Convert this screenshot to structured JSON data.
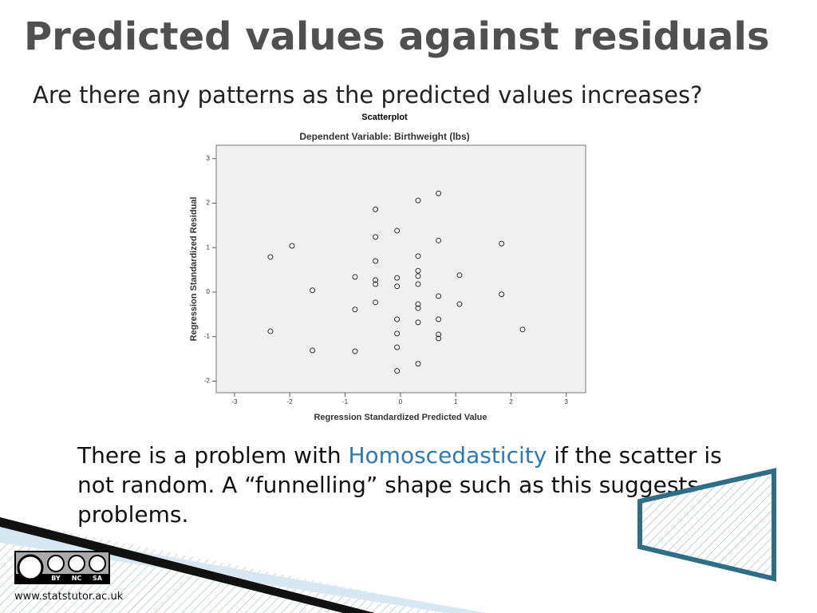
{
  "slide": {
    "title": "Predicted values against residuals",
    "subtitle": "Are there any patterns as the predicted values increases?",
    "body": [
      "There is a problem with ",
      "Homoscedasticity",
      " if the scatter is not random.  A “funnelling” shape such as this suggests problems."
    ],
    "license": [
      "BY",
      "NC",
      "SA"
    ],
    "url": "www.statstutor.ac.uk"
  },
  "chart_data": {
    "type": "scatter",
    "title": "Scatterplot",
    "subtitle": "Dependent Variable: Birthweight (lbs)",
    "x_label": "Regression Standardized Predicted Value",
    "y_label": "Regression Standardized Residual",
    "xlim": [
      -3.33,
      3.35
    ],
    "ylim": [
      -2.26,
      3.3
    ],
    "xticks": [
      -3,
      -2,
      -1,
      0,
      1,
      2,
      3
    ],
    "yticks": [
      -2,
      -1,
      0,
      1,
      2,
      3
    ],
    "color": "#333333",
    "x": [
      -2.35,
      -1.96,
      -2.35,
      -1.59,
      -1.59,
      -0.82,
      -0.82,
      -0.82,
      -0.45,
      -0.45,
      -0.45,
      -0.45,
      -0.45,
      -0.45,
      -0.06,
      -0.06,
      -0.06,
      -0.06,
      -0.06,
      -0.06,
      -0.06,
      0.32,
      0.32,
      0.32,
      0.32,
      0.32,
      0.32,
      0.32,
      0.32,
      0.32,
      0.69,
      0.69,
      0.69,
      0.69,
      0.69,
      0.69,
      1.07,
      1.07,
      1.83,
      1.83,
      2.21
    ],
    "values": [
      0.79,
      1.04,
      -0.88,
      0.04,
      -1.31,
      0.34,
      -0.39,
      -1.33,
      1.86,
      1.24,
      0.7,
      0.27,
      0.18,
      -0.23,
      1.38,
      0.32,
      0.13,
      -0.61,
      -0.93,
      -1.24,
      -1.77,
      2.06,
      0.81,
      0.48,
      0.36,
      0.18,
      -0.27,
      -0.36,
      -0.68,
      -1.61,
      2.22,
      1.16,
      -0.09,
      -0.61,
      -0.95,
      -1.04,
      0.38,
      -0.27,
      1.09,
      -0.05,
      -0.84
    ]
  }
}
